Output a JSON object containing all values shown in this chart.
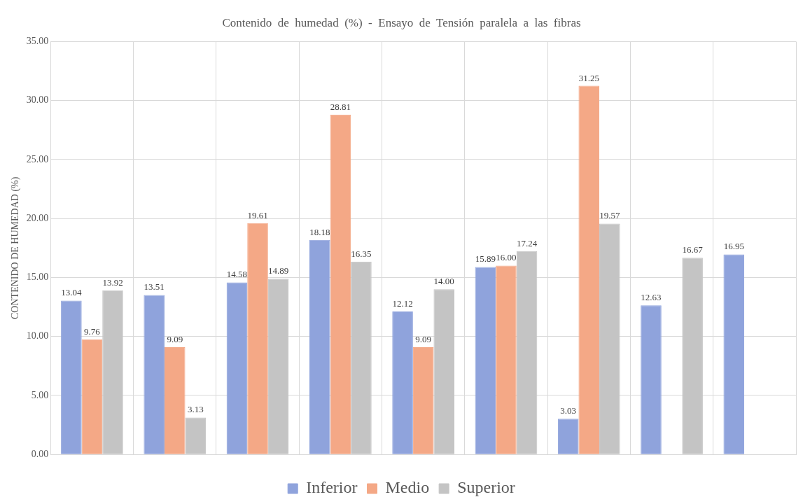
{
  "chart_data": {
    "type": "bar",
    "title": "Contenido  de  humedad  (%)  -  Ensayo  de  Tensión  paralela  a  las  fibras",
    "ylabel": "CONTENIDO DE HUMEDAD (%)",
    "categories": [
      null,
      null,
      null,
      null,
      null,
      null,
      null,
      null,
      null
    ],
    "series": [
      {
        "name": "Inferior",
        "color": "#8fa3dc",
        "values": [
          13.04,
          13.51,
          14.58,
          18.18,
          12.12,
          15.89,
          3.03,
          12.63,
          16.95
        ],
        "value_labels": [
          "13.04",
          "13.51",
          "14.58",
          "18.18",
          "12.12",
          "15.89",
          "3.03",
          "12.63",
          "16.95"
        ]
      },
      {
        "name": "Medio",
        "color": "#f4a886",
        "values": [
          9.76,
          9.09,
          19.61,
          28.81,
          9.09,
          16.0,
          31.25,
          null,
          null
        ],
        "value_labels": [
          "9.76",
          "9.09",
          "19.61",
          "28.81",
          "9.09",
          "16.00",
          "31.25",
          null,
          null
        ]
      },
      {
        "name": "Superior",
        "color": "#c4c4c4",
        "values": [
          13.92,
          3.13,
          14.89,
          16.35,
          14.0,
          17.24,
          19.57,
          16.67,
          null
        ],
        "value_labels": [
          "13.92",
          "3.13",
          "14.89",
          "16.35",
          "14.00",
          "17.24",
          "19.57",
          "16.67",
          null
        ]
      }
    ],
    "ylim": [
      0,
      35
    ],
    "yticks": [
      {
        "value": 0,
        "label": "0.00"
      },
      {
        "value": 5,
        "label": "5.00"
      },
      {
        "value": 10,
        "label": "10.00"
      },
      {
        "value": 15,
        "label": "15.00"
      },
      {
        "value": 20,
        "label": "20.00"
      },
      {
        "value": 25,
        "label": "25.00"
      },
      {
        "value": 30,
        "label": "30.00"
      },
      {
        "value": 35,
        "label": "35.00"
      }
    ],
    "grid": true,
    "legend": "bottom"
  }
}
